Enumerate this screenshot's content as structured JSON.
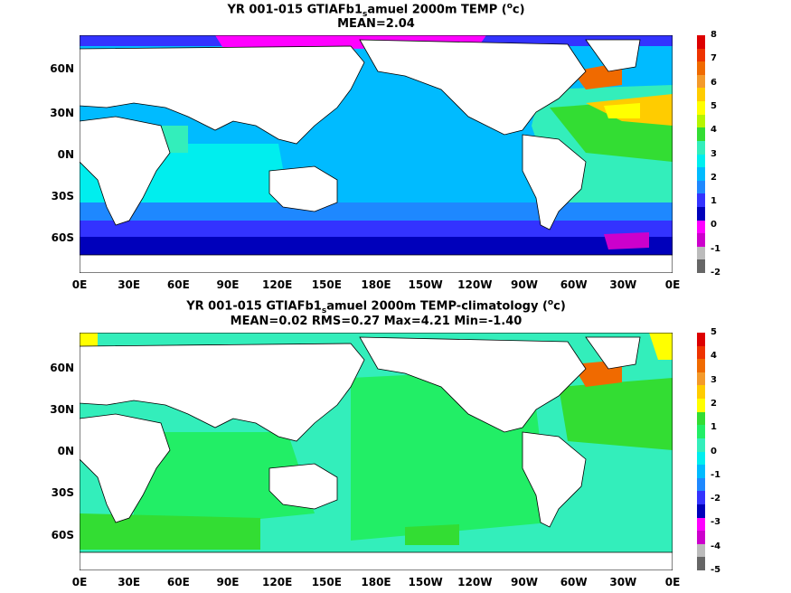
{
  "panel_top": {
    "title_prefix": "YR 001-015 GTIAFb1",
    "title_sub": "s",
    "title_suffix": "amuel 2000m TEMP (",
    "title_sup": "o",
    "title_unit_close": "c)",
    "stats": "MEAN=2.04",
    "colorbar_labels": [
      "8",
      "7",
      "6",
      "5",
      "4",
      "3",
      "2",
      "1",
      "0",
      "-1",
      "-2"
    ],
    "colorbar_colors": [
      "#dd0000",
      "#ee3300",
      "#f06a00",
      "#f49a2a",
      "#ffcc00",
      "#ffff00",
      "#b6f500",
      "#33dd33",
      "#33eebb",
      "#00eeee",
      "#00bbff",
      "#1e88ff",
      "#3333ff",
      "#0000bb",
      "#ff00ff",
      "#cc00cc",
      "#bbbbbb",
      "#666666"
    ]
  },
  "panel_bottom": {
    "title_prefix": "YR 001-015 GTIAFb1",
    "title_sub": "s",
    "title_suffix": "amuel 2000m TEMP-climatology (",
    "title_sup": "o",
    "title_unit_close": "c)",
    "stats": "MEAN=0.02   RMS=0.27   Max=4.21   Min=-1.40",
    "colorbar_labels": [
      "5",
      "4",
      "3",
      "2",
      "1",
      "0",
      "-1",
      "-2",
      "-3",
      "-4",
      "-5"
    ],
    "colorbar_colors": [
      "#dd0000",
      "#ee3300",
      "#f06a00",
      "#f49a2a",
      "#ffcc00",
      "#ffff00",
      "#33dd33",
      "#22ee66",
      "#33eebb",
      "#00eeee",
      "#00bbff",
      "#1e88ff",
      "#3333ff",
      "#0000bb",
      "#ff00ff",
      "#cc00cc",
      "#bbbbbb",
      "#666666"
    ]
  },
  "axes": {
    "x_ticks": [
      "0E",
      "30E",
      "60E",
      "90E",
      "120E",
      "150E",
      "180E",
      "150W",
      "120W",
      "90W",
      "60W",
      "30W",
      "0E"
    ],
    "y_ticks": [
      "60N",
      "30N",
      "0N",
      "30S",
      "60S"
    ]
  }
}
